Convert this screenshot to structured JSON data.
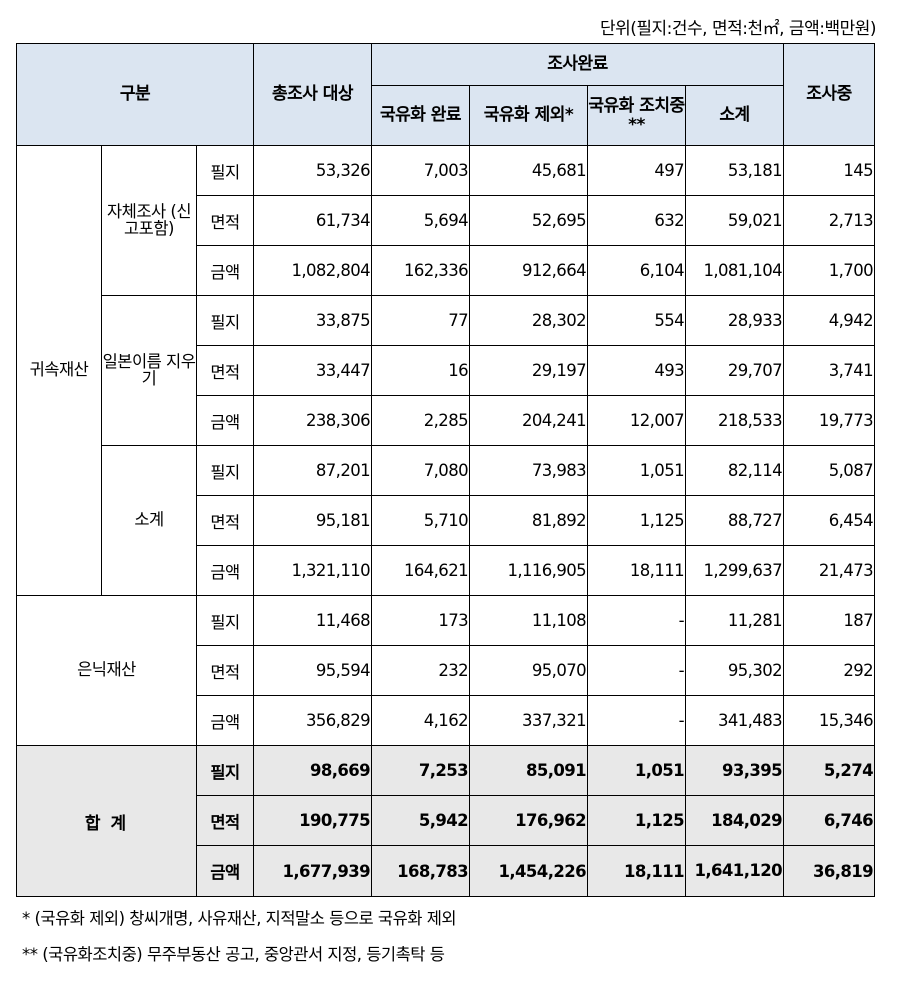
{
  "unit_note": "단위(필지:건수, 면적:천㎡, 금액:백만원)",
  "headers": {
    "category": "구분",
    "total_target": "총조사 대상",
    "completed": "조사완료",
    "nationalized": "국유화 완료",
    "excluded": "국유화 제외*",
    "in_progress_nat": "국유화 조치중**",
    "subtotal": "소계",
    "investigating": "조사중"
  },
  "groups": {
    "vested": "귀속재산",
    "self_survey": "자체조사 (신고포함)",
    "japanese_names": "일본이름 지우기",
    "subtotal": "소계",
    "hidden": "은닉재산",
    "total": "합 계"
  },
  "row_labels": {
    "parcels": "필지",
    "area": "면적",
    "amount": "금액"
  },
  "rows": [
    {
      "label": "필지",
      "values": [
        "53,326",
        "7,003",
        "45,681",
        "497",
        "53,181",
        "145"
      ]
    },
    {
      "label": "면적",
      "values": [
        "61,734",
        "5,694",
        "52,695",
        "632",
        "59,021",
        "2,713"
      ]
    },
    {
      "label": "금액",
      "values": [
        "1,082,804",
        "162,336",
        "912,664",
        "6,104",
        "1,081,104",
        "1,700"
      ]
    },
    {
      "label": "필지",
      "values": [
        "33,875",
        "77",
        "28,302",
        "554",
        "28,933",
        "4,942"
      ]
    },
    {
      "label": "면적",
      "values": [
        "33,447",
        "16",
        "29,197",
        "493",
        "29,707",
        "3,741"
      ]
    },
    {
      "label": "금액",
      "values": [
        "238,306",
        "2,285",
        "204,241",
        "12,007",
        "218,533",
        "19,773"
      ]
    },
    {
      "label": "필지",
      "values": [
        "87,201",
        "7,080",
        "73,983",
        "1,051",
        "82,114",
        "5,087"
      ]
    },
    {
      "label": "면적",
      "values": [
        "95,181",
        "5,710",
        "81,892",
        "1,125",
        "88,727",
        "6,454"
      ]
    },
    {
      "label": "금액",
      "values": [
        "1,321,110",
        "164,621",
        "1,116,905",
        "18,111",
        "1,299,637",
        "21,473"
      ]
    },
    {
      "label": "필지",
      "values": [
        "11,468",
        "173",
        "11,108",
        "-",
        "11,281",
        "187"
      ]
    },
    {
      "label": "면적",
      "values": [
        "95,594",
        "232",
        "95,070",
        "-",
        "95,302",
        "292"
      ]
    },
    {
      "label": "금액",
      "values": [
        "356,829",
        "4,162",
        "337,321",
        "-",
        "341,483",
        "15,346"
      ]
    },
    {
      "label": "필지",
      "values": [
        "98,669",
        "7,253",
        "85,091",
        "1,051",
        "93,395",
        "5,274"
      ]
    },
    {
      "label": "면적",
      "values": [
        "190,775",
        "5,942",
        "176,962",
        "1,125",
        "184,029",
        "6,746"
      ]
    },
    {
      "label": "금액",
      "values": [
        "1,677,939",
        "168,783",
        "1,454,226",
        "18,111",
        "1,641,120",
        "36,819"
      ]
    }
  ],
  "notes": [
    "* (국유화 제외) 창씨개명, 사유재산, 지적말소 등으로 국유화 제외",
    "** (국유화조치중) 무주부동산 공고, 중앙관서 지정, 등기촉탁 등"
  ]
}
